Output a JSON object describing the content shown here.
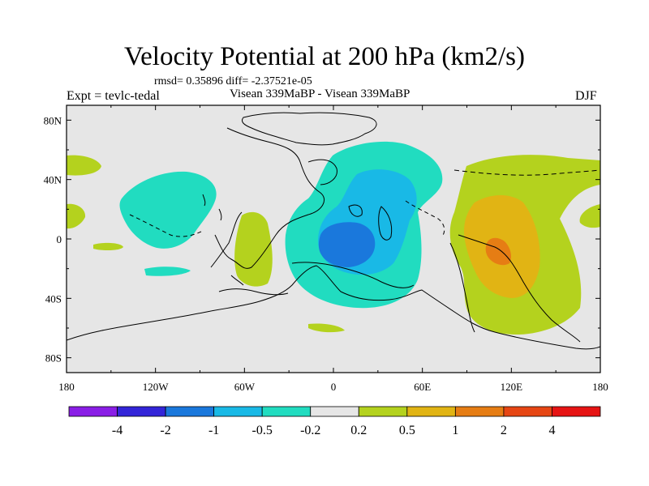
{
  "title": "Velocity Potential at 200 hPa (km2/s)",
  "stats_text": "rmsd= 0.35896 diff= -2.37521e-05",
  "left_label": "Expt = tevlc-tedal",
  "center_label": "Visean 339MaBP - Visean 339MaBP",
  "right_label": "DJF",
  "chart_data": {
    "type": "contour_map",
    "title": "Velocity Potential at 200 hPa (km2/s)",
    "variable": "Velocity Potential",
    "level": "200 hPa",
    "units": "km2/s",
    "season": "DJF",
    "experiment": "tevlc-tedal",
    "comparison": "Visean 339MaBP - Visean 339MaBP",
    "rmsd": 0.35896,
    "diff": -2.37521e-05,
    "xlim": [
      -180,
      180
    ],
    "ylim": [
      -90,
      90
    ],
    "x_ticks": [
      {
        "value": -180,
        "label": "180"
      },
      {
        "value": -120,
        "label": "120W"
      },
      {
        "value": -60,
        "label": "60W"
      },
      {
        "value": 0,
        "label": "0"
      },
      {
        "value": 60,
        "label": "60E"
      },
      {
        "value": 120,
        "label": "120E"
      },
      {
        "value": 180,
        "label": "180"
      }
    ],
    "y_ticks": [
      {
        "value": 80,
        "label": "80N"
      },
      {
        "value": 40,
        "label": "40N"
      },
      {
        "value": 0,
        "label": "0"
      },
      {
        "value": -40,
        "label": "40S"
      },
      {
        "value": -80,
        "label": "80S"
      }
    ],
    "colorbar": {
      "labels": [
        "-4",
        "-2",
        "-1",
        "-0.5",
        "-0.2",
        "0.2",
        "0.5",
        "1",
        "2",
        "4"
      ],
      "colors": [
        "#8a1ee6",
        "#3325d8",
        "#1a78dc",
        "#19b9e6",
        "#21dcc0",
        "#e6e6e6",
        "#b4d21e",
        "#e1b414",
        "#e67d14",
        "#e64614",
        "#e61414"
      ]
    },
    "field": {
      "background_level": "0.2",
      "centers": [
        {
          "lon": -5,
          "lat": 2,
          "peak": "-2",
          "desc": "negative minimum over tropical western ocean"
        },
        {
          "lon": 110,
          "lat": -10,
          "peak": "2",
          "desc": "positive maximum over eastern region"
        },
        {
          "lon": -115,
          "lat": 25,
          "peak": "-0.2",
          "desc": "weak negative anomaly"
        }
      ]
    }
  }
}
